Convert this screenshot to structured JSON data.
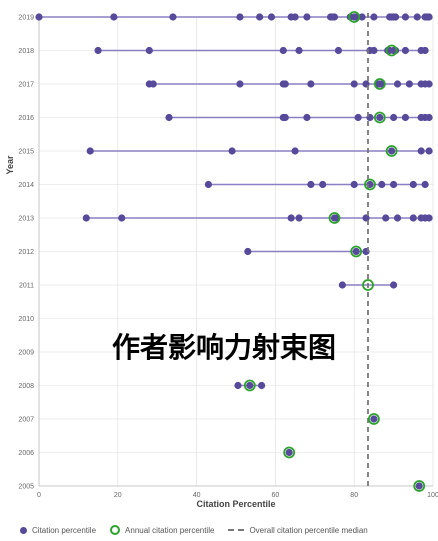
{
  "overlay_text": "作者影响力射束图",
  "colors": {
    "dot": "#574a9b",
    "line": "#8a7fc2",
    "ring": "#2da32d",
    "median": "#777777",
    "grid": "#dddddd"
  },
  "legend": {
    "citation": "Citation percentile",
    "annual": "Annual citation percentile",
    "median": "Overall citation percentile median"
  },
  "chart_data": {
    "type": "scatter",
    "xlabel": "Citation Percentile",
    "ylabel": "Year",
    "xlim": [
      0,
      100
    ],
    "xticks": [
      0,
      20,
      40,
      60,
      80,
      100
    ],
    "years": [
      2019,
      2018,
      2017,
      2016,
      2015,
      2014,
      2013,
      2012,
      2011,
      2010,
      2009,
      2008,
      2007,
      2006,
      2005
    ],
    "median": 83.5,
    "grid": true,
    "legend_position": "bottom",
    "rows": [
      {
        "year": 2019,
        "annual": 80,
        "points": [
          0,
          19,
          34,
          51,
          56,
          59,
          64,
          65,
          68,
          74,
          74.5,
          75,
          79,
          80,
          80.5,
          82,
          85,
          89,
          89.5,
          90,
          90.5,
          93,
          96,
          98,
          98.5,
          99
        ]
      },
      {
        "year": 2018,
        "annual": 89.5,
        "points": [
          15,
          28,
          62,
          66,
          76,
          84,
          85,
          88.5,
          89,
          90,
          90.5,
          93,
          97,
          98
        ]
      },
      {
        "year": 2017,
        "annual": 86.5,
        "points": [
          28,
          29,
          51,
          62,
          62.5,
          69,
          80,
          83,
          86,
          86.5,
          87,
          91,
          94,
          97,
          98,
          99
        ]
      },
      {
        "year": 2016,
        "annual": 86.5,
        "points": [
          33,
          62,
          62.5,
          68,
          81,
          84,
          86.5,
          90,
          93,
          97,
          98,
          99
        ]
      },
      {
        "year": 2015,
        "annual": 89.5,
        "points": [
          13,
          49,
          65,
          89.5,
          97,
          99
        ]
      },
      {
        "year": 2014,
        "annual": 84,
        "points": [
          43,
          69,
          72,
          80,
          84,
          87,
          90,
          95,
          98
        ]
      },
      {
        "year": 2013,
        "annual": 75,
        "points": [
          12,
          21,
          64,
          66,
          75,
          75.5,
          83,
          88,
          91,
          95,
          97,
          98,
          99
        ]
      },
      {
        "year": 2012,
        "annual": 80.5,
        "points": [
          53,
          80.5,
          83
        ]
      },
      {
        "year": 2011,
        "annual": 83.5,
        "points": [
          77,
          90
        ]
      },
      {
        "year": 2008,
        "annual": 53.5,
        "points": [
          50.5,
          53.5,
          56.5
        ]
      },
      {
        "year": 2007,
        "annual": 85,
        "points": [
          85
        ]
      },
      {
        "year": 2006,
        "annual": 63.5,
        "points": [
          63.5
        ]
      },
      {
        "year": 2005,
        "annual": 96.5,
        "points": [
          96.5
        ]
      }
    ]
  }
}
